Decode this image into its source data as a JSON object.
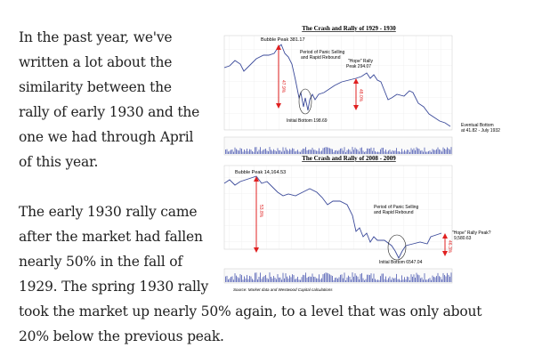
{
  "article": {
    "paragraph1_lines": [
      "In the past year, we've",
      "written a lot about the",
      "similarity between the",
      "rally of early 1930 and the",
      "one we had through April",
      "of this year."
    ],
    "paragraph2_lines": [
      "The early 1930 rally came",
      "after the market had fallen",
      "nearly 50% in the fall of",
      "1929.  The spring 1930 rally",
      "took the market up nearly 50% again, to a level that was only about",
      "20% below the previous peak."
    ]
  },
  "figure": {
    "chart1": {
      "title": "The Crash and Rally of 1929 - 1930",
      "bubble_peak": "Bubble Peak 381.17",
      "panic_line1": "Period of Panic Selling",
      "panic_line2": "and Rapid Rebound",
      "hope_line1": "\"Hope\" Rally",
      "hope_line2": "Peak 294.07",
      "initial_bottom": "Initial Bottom 198.69",
      "eventual_line1": "Eventual Bottom",
      "eventual_line2": "at 41.82 - July 1932",
      "drop_pct": "47.9%",
      "rally_pct": "48.0%"
    },
    "chart2": {
      "title": "The Crash and Rally of 2008 - 2009",
      "bubble_peak": "Bubble Peak 14,164.53",
      "panic_line1": "Period of Panic Selling",
      "panic_line2": "and Rapid Rebound",
      "initial_bottom": "Initial Bottom 6547.04",
      "hope_line1": "\"Hope\" Rally Peak?",
      "hope_line2": "9,580.63",
      "drop_pct": "53.8%",
      "rally_pct": "46.3%"
    },
    "source": "Source:  Market data and Westwood Capital calculations",
    "colors": {
      "line": "#3b4a9a",
      "arrow": "#e02020",
      "volume": "#6f79c0"
    }
  }
}
